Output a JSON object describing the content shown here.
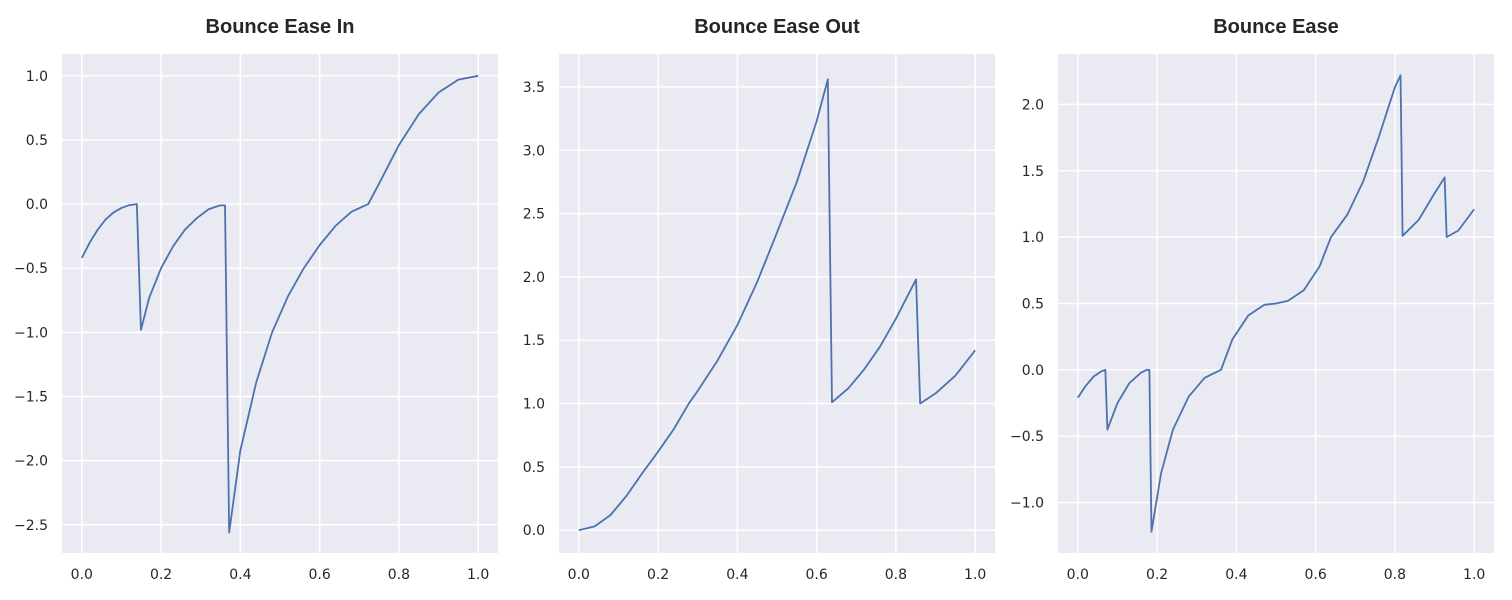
{
  "figure": {
    "background": "#ffffff",
    "axes_face": "#eaeaf2",
    "grid_color": "#ffffff",
    "line_color": "#4c72b0",
    "tick_text_color": "#262626"
  },
  "chart_data": [
    {
      "type": "line",
      "title": "Bounce Ease In",
      "xlabel": "",
      "ylabel": "",
      "xlim": [
        -0.05,
        1.05
      ],
      "ylim": [
        -2.72,
        1.17
      ],
      "xticks": [
        0.0,
        0.2,
        0.4,
        0.6,
        0.8,
        1.0
      ],
      "xtick_labels": [
        "0.0",
        "0.2",
        "0.4",
        "0.6",
        "0.8",
        "1.0"
      ],
      "yticks": [
        -2.5,
        -2.0,
        -1.5,
        -1.0,
        -0.5,
        0.0,
        0.5,
        1.0
      ],
      "ytick_labels": [
        "−2.5",
        "−2.0",
        "−1.5",
        "−1.0",
        "−0.5",
        "0.0",
        "0.5",
        "1.0"
      ],
      "grid": true,
      "legend": "none",
      "series": [
        {
          "x": [
            0.0,
            0.02,
            0.04,
            0.06,
            0.08,
            0.1,
            0.12,
            0.1388,
            0.1492,
            0.17,
            0.2,
            0.23,
            0.26,
            0.29,
            0.32,
            0.3484,
            0.3613,
            0.3717,
            0.4,
            0.44,
            0.48,
            0.52,
            0.56,
            0.6,
            0.64,
            0.68,
            0.7226,
            0.75,
            0.8,
            0.85,
            0.9,
            0.95,
            1.0
          ],
          "y": [
            -0.42,
            -0.3,
            -0.2,
            -0.12,
            -0.065,
            -0.03,
            -0.008,
            0.0,
            -0.98,
            -0.73,
            -0.5,
            -0.33,
            -0.2,
            -0.11,
            -0.04,
            -0.01,
            -0.01,
            -2.56,
            -1.92,
            -1.39,
            -1.0,
            -0.72,
            -0.5,
            -0.32,
            -0.17,
            -0.06,
            0.0,
            0.16,
            0.46,
            0.7,
            0.87,
            0.97,
            1.0
          ]
        }
      ]
    },
    {
      "type": "line",
      "title": "Bounce Ease Out",
      "xlabel": "",
      "ylabel": "",
      "xlim": [
        -0.05,
        1.05
      ],
      "ylim": [
        -0.18,
        3.76
      ],
      "xticks": [
        0.0,
        0.2,
        0.4,
        0.6,
        0.8,
        1.0
      ],
      "xtick_labels": [
        "0.0",
        "0.2",
        "0.4",
        "0.6",
        "0.8",
        "1.0"
      ],
      "yticks": [
        0.0,
        0.5,
        1.0,
        1.5,
        2.0,
        2.5,
        3.0,
        3.5
      ],
      "ytick_labels": [
        "0.0",
        "0.5",
        "1.0",
        "1.5",
        "2.0",
        "2.5",
        "3.0",
        "3.5"
      ],
      "grid": true,
      "legend": "none",
      "series": [
        {
          "x": [
            0.0,
            0.04,
            0.08,
            0.12,
            0.16,
            0.2,
            0.24,
            0.2774,
            0.3,
            0.35,
            0.4,
            0.45,
            0.5,
            0.55,
            0.6,
            0.6283,
            0.6387,
            0.68,
            0.72,
            0.76,
            0.8,
            0.8508,
            0.8612,
            0.9,
            0.95,
            1.0
          ],
          "y": [
            0.0,
            0.03,
            0.12,
            0.27,
            0.45,
            0.62,
            0.8,
            1.0,
            1.1,
            1.34,
            1.62,
            1.96,
            2.35,
            2.75,
            3.23,
            3.56,
            1.01,
            1.12,
            1.27,
            1.45,
            1.67,
            1.98,
            1.0,
            1.08,
            1.22,
            1.42
          ]
        }
      ]
    },
    {
      "type": "line",
      "title": "Bounce Ease",
      "xlabel": "",
      "ylabel": "",
      "xlim": [
        -0.05,
        1.05
      ],
      "ylim": [
        -1.38,
        2.38
      ],
      "xticks": [
        0.0,
        0.2,
        0.4,
        0.6,
        0.8,
        1.0
      ],
      "xtick_labels": [
        "0.0",
        "0.2",
        "0.4",
        "0.6",
        "0.8",
        "1.0"
      ],
      "yticks": [
        -1.0,
        -0.5,
        0.0,
        0.5,
        1.0,
        1.5,
        2.0
      ],
      "ytick_labels": [
        "−1.0",
        "−0.5",
        "0.0",
        "0.5",
        "1.0",
        "1.5",
        "2.0"
      ],
      "grid": true,
      "legend": "none",
      "series": [
        {
          "x": [
            0.0,
            0.02,
            0.04,
            0.06,
            0.0694,
            0.0746,
            0.1,
            0.13,
            0.16,
            0.1742,
            0.1806,
            0.1858,
            0.21,
            0.24,
            0.28,
            0.32,
            0.3613,
            0.39,
            0.43,
            0.47,
            0.5,
            0.53,
            0.57,
            0.61,
            0.6387,
            0.68,
            0.72,
            0.76,
            0.8,
            0.8142,
            0.8194,
            0.86,
            0.9,
            0.9254,
            0.9306,
            0.96,
            1.0
          ],
          "y": [
            -0.21,
            -0.12,
            -0.05,
            -0.01,
            0.0,
            -0.45,
            -0.25,
            -0.1,
            -0.02,
            0.0,
            0.0,
            -1.22,
            -0.78,
            -0.45,
            -0.2,
            -0.06,
            0.0,
            0.23,
            0.41,
            0.49,
            0.5,
            0.52,
            0.6,
            0.78,
            1.0,
            1.17,
            1.42,
            1.76,
            2.13,
            2.22,
            1.01,
            1.13,
            1.33,
            1.45,
            1.0,
            1.05,
            1.21
          ]
        }
      ]
    }
  ]
}
